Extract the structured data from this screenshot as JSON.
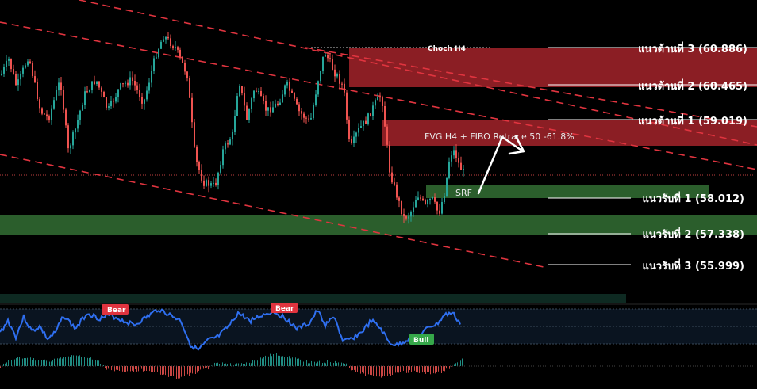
{
  "chart_data": {
    "type": "candlestick",
    "price_range": [
      55.0,
      62.3
    ],
    "resistance_levels": [
      {
        "label": "แนวต้านที่ 3 (60.886)",
        "price": 60.886
      },
      {
        "label": "แนวต้านที่ 2 (60.465)",
        "price": 60.465
      },
      {
        "label": "แนวต้านที่ 1 (59.019)",
        "price": 59.019
      }
    ],
    "support_levels": [
      {
        "label": "แนวรับที่ 1 (58.012)",
        "price": 58.012
      },
      {
        "label": "แนวรับที่ 2 (57.338)",
        "price": 57.338
      },
      {
        "label": "แนวรับที่ 3 (55.999)",
        "price": 55.999
      }
    ],
    "annotations": {
      "choch": "Choch H4",
      "fvg": "FVG H4  + FIBO Retrace 50 -61.8%",
      "srf": "SRF"
    },
    "zones": [
      {
        "name": "supply-zone-upper",
        "color": "#8b1e24",
        "price_top": 60.886,
        "price_bottom": 60.465
      },
      {
        "name": "fvg-zone",
        "color": "#8b1e24",
        "price_top": 59.02,
        "price_bottom": 58.55
      },
      {
        "name": "srf-zone",
        "color": "#2b5e2c",
        "price_top": 58.15,
        "price_bottom": 57.95
      },
      {
        "name": "demand-zone",
        "color": "#2b5e2c",
        "price_top": 57.72,
        "price_bottom": 57.33
      }
    ],
    "oscillator": {
      "signals": [
        {
          "label": "Bear",
          "color": "#e0343f"
        },
        {
          "label": "Bear",
          "color": "#e0343f"
        },
        {
          "label": "Bull",
          "color": "#36a84a"
        }
      ]
    },
    "colors": {
      "up": "#26a69a",
      "down": "#ef5350",
      "trendline": "#e0343f",
      "oscillator": "#2f6ff0"
    }
  }
}
